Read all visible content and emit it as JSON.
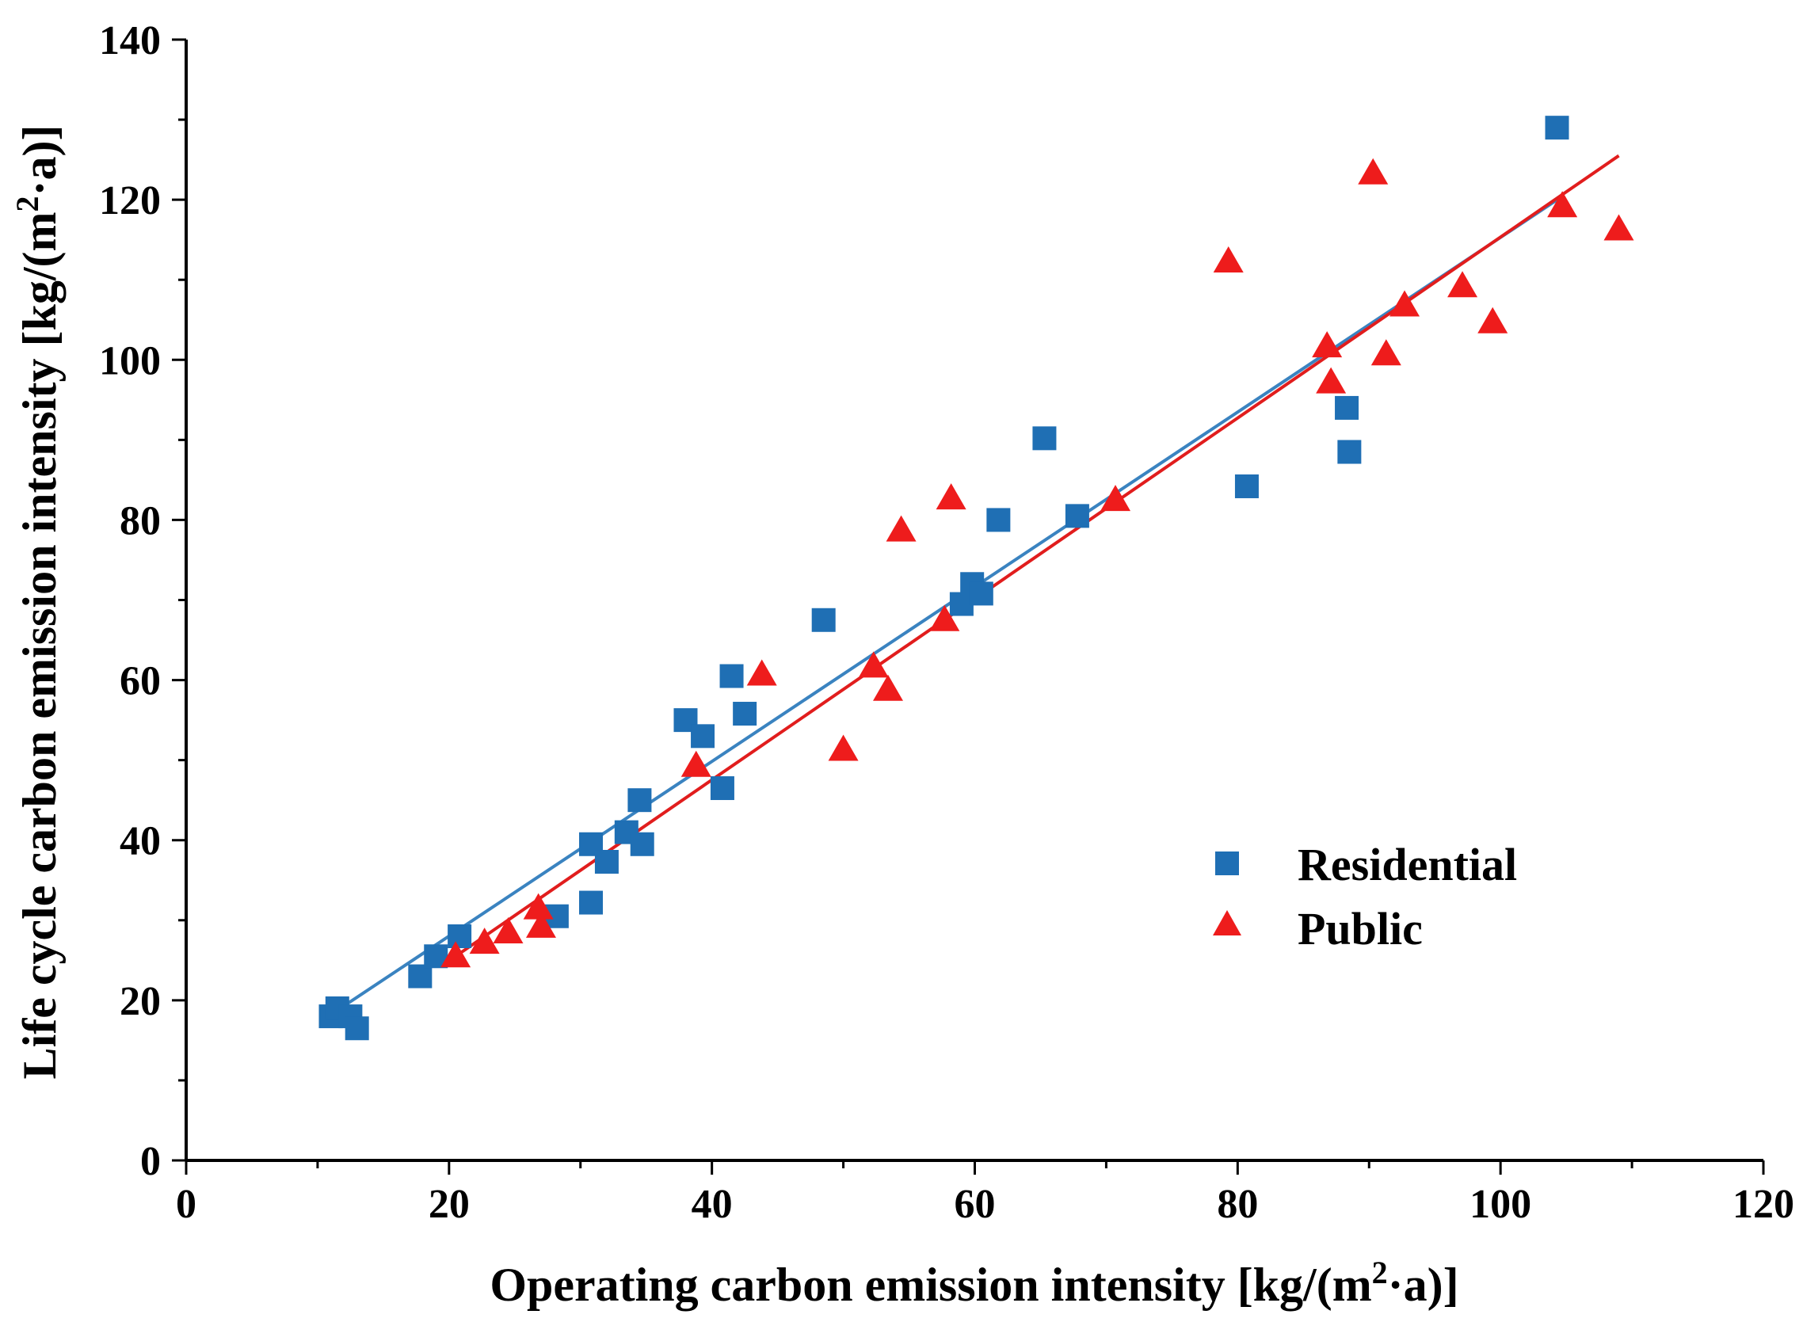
{
  "chart_data": {
    "type": "scatter",
    "title": "",
    "xlabel": {
      "prefix": "Operating carbon emission intensity [kg/(m",
      "sup": "2",
      "suffix": "·a)]"
    },
    "ylabel": {
      "prefix": "Life cycle carbon emission intensity [kg/(m",
      "sup": "2",
      "suffix": "·a)]"
    },
    "xlim": [
      0,
      120
    ],
    "ylim": [
      0,
      140
    ],
    "x_ticks": [
      0,
      20,
      40,
      60,
      80,
      100,
      120
    ],
    "y_ticks": [
      0,
      20,
      40,
      60,
      80,
      100,
      120,
      140
    ],
    "grid": false,
    "legend_position": "center-right",
    "series": [
      {
        "name": "Residential",
        "marker": "square",
        "color": "#1f6fb4",
        "fit_color": "#3a83c0",
        "fit_line": {
          "x": [
            11,
            104.5
          ],
          "y": [
            18.2,
            120.2
          ]
        },
        "points": [
          [
            11,
            18
          ],
          [
            11.5,
            19
          ],
          [
            12.5,
            18
          ],
          [
            13,
            16.5
          ],
          [
            17.8,
            23
          ],
          [
            19,
            25.5
          ],
          [
            20.8,
            28
          ],
          [
            28.2,
            30.5
          ],
          [
            30.8,
            32.2
          ],
          [
            30.8,
            39.5
          ],
          [
            32,
            37.3
          ],
          [
            33.5,
            41
          ],
          [
            34.5,
            45
          ],
          [
            34.7,
            39.5
          ],
          [
            38,
            55
          ],
          [
            39.3,
            53
          ],
          [
            40.8,
            46.5
          ],
          [
            41.5,
            60.5
          ],
          [
            42.5,
            55.8
          ],
          [
            48.5,
            67.5
          ],
          [
            59,
            69.5
          ],
          [
            59.8,
            72
          ],
          [
            60.5,
            70.8
          ],
          [
            61.8,
            80
          ],
          [
            65.3,
            90.2
          ],
          [
            67.8,
            80.5
          ],
          [
            80.7,
            84.2
          ],
          [
            88.3,
            94
          ],
          [
            88.5,
            88.5
          ],
          [
            104.3,
            129
          ]
        ]
      },
      {
        "name": "Public",
        "marker": "triangle",
        "color": "#ee1c1c",
        "fit_color": "#e11d1d",
        "fit_line": {
          "x": [
            20.5,
            109
          ],
          "y": [
            25.5,
            125.5
          ]
        },
        "points": [
          [
            20.5,
            25.5
          ],
          [
            22.7,
            27.2
          ],
          [
            24.5,
            28.5
          ],
          [
            26.8,
            31.5
          ],
          [
            27,
            29.2
          ],
          [
            38.8,
            49.3
          ],
          [
            43.8,
            60.7
          ],
          [
            50,
            51.3
          ],
          [
            52.3,
            61.7
          ],
          [
            53.4,
            58.8
          ],
          [
            54.4,
            78.7
          ],
          [
            57.7,
            67.5
          ],
          [
            58.2,
            82.7
          ],
          [
            70.7,
            82.5
          ],
          [
            79.3,
            112.3
          ],
          [
            86.8,
            101.7
          ],
          [
            87.1,
            97.2
          ],
          [
            90.3,
            123.3
          ],
          [
            91.3,
            100.7
          ],
          [
            92.7,
            106.8
          ],
          [
            97.1,
            109.2
          ],
          [
            99.4,
            104.7
          ],
          [
            104.7,
            119.2
          ],
          [
            109,
            116.3
          ]
        ]
      }
    ]
  }
}
